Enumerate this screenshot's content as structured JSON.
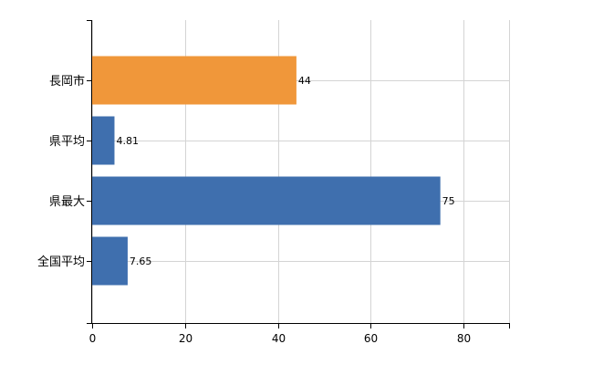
{
  "chart_data": {
    "type": "bar",
    "orientation": "horizontal",
    "title": "",
    "xlabel": "",
    "ylabel": "",
    "categories": [
      "長岡市",
      "県平均",
      "県最大",
      "全国平均"
    ],
    "values": [
      44,
      4.81,
      75,
      7.65
    ],
    "value_labels": [
      "44",
      "4.81",
      "75",
      "7.65"
    ],
    "bar_colors": [
      "#f0973a",
      "#3f6fae",
      "#3f6fae",
      "#3f6fae"
    ],
    "xlim": [
      0,
      90
    ],
    "xticks": [
      0,
      20,
      40,
      60,
      80
    ],
    "xtick_labels": [
      "0",
      "20",
      "40",
      "60",
      "80"
    ],
    "grid": true,
    "legend": "none"
  }
}
